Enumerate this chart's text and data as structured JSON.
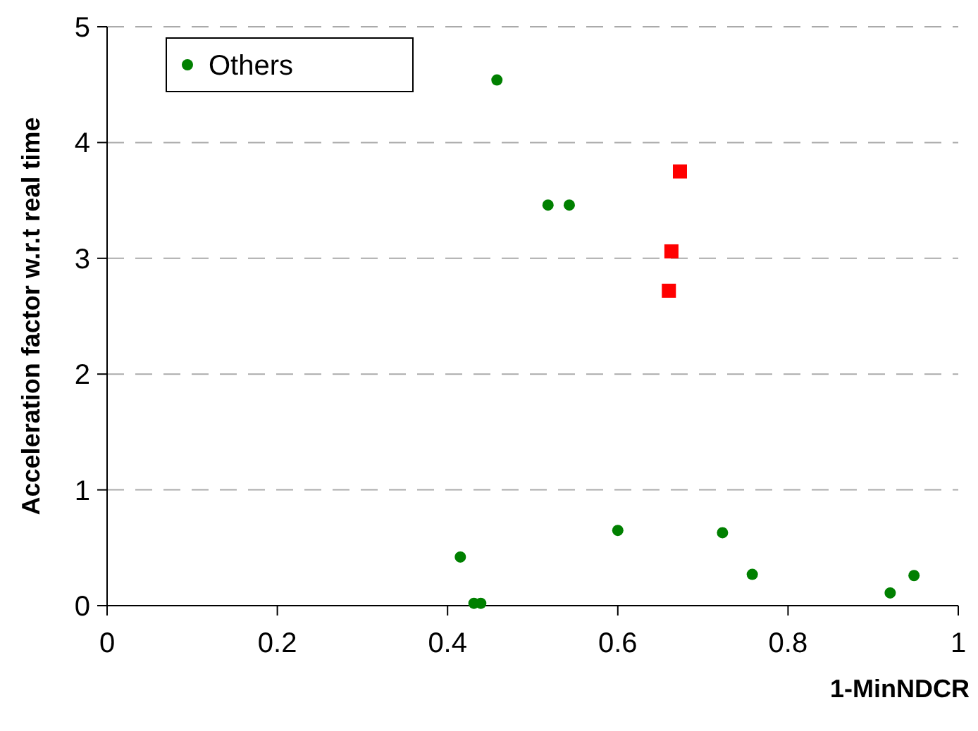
{
  "chart_data": {
    "type": "scatter",
    "xlabel": "1-MinNDCR",
    "ylabel": "Acceleration factor w.r.t real time",
    "xlim": [
      0,
      1
    ],
    "xticks": [
      0,
      0.2,
      0.4,
      0.6,
      0.8,
      1
    ],
    "ylim": [
      0,
      5
    ],
    "yticks": [
      0,
      1,
      2,
      3,
      4,
      5
    ],
    "grid": "y",
    "legend": "top left",
    "series": [
      {
        "name": "Others",
        "color": "#008000",
        "marker": "circle",
        "x": [
          0.458,
          0.518,
          0.543,
          0.415,
          0.431,
          0.439,
          0.6,
          0.723,
          0.758,
          0.92,
          0.948
        ],
        "values": [
          4.54,
          3.46,
          3.46,
          0.42,
          0.02,
          0.02,
          0.65,
          0.63,
          0.27,
          0.11,
          0.26
        ]
      },
      {
        "color": "#ff0000",
        "marker": "square",
        "x": [
          0.673,
          0.663,
          0.66
        ],
        "values": [
          3.75,
          3.06,
          2.72
        ]
      }
    ]
  }
}
